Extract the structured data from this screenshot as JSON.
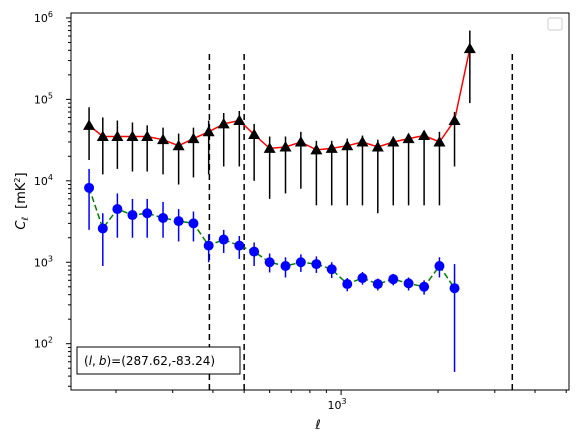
{
  "chart_data": {
    "type": "scatter",
    "xscale": "log",
    "yscale": "log",
    "xlim": [
      145,
      5100
    ],
    "ylim": [
      27,
      1150000
    ],
    "xlabel": "ℓ",
    "ylabel_main": "C",
    "ylabel_sub": "ℓ",
    "ylabel_unit": "[mK",
    "ylabel_unit_sup": "2",
    "ylabel_unit_close": "]",
    "x_tick_labels": [
      {
        "base": "10",
        "exp": "3",
        "value": 1000
      }
    ],
    "y_tick_labels": [
      {
        "base": "10",
        "exp": "2",
        "value": 100
      },
      {
        "base": "10",
        "exp": "3",
        "value": 1000
      },
      {
        "base": "10",
        "exp": "4",
        "value": 10000
      },
      {
        "base": "10",
        "exp": "5",
        "value": 100000
      },
      {
        "base": "10",
        "exp": "6",
        "value": 1000000
      }
    ],
    "vertical_lines": [
      {
        "x": 390,
        "ymax": 400000
      },
      {
        "x": 500,
        "ymax": 400000
      },
      {
        "x": 3400,
        "ymax": 400000
      }
    ],
    "series": [
      {
        "marker": "triangle",
        "marker_color": "#000000",
        "line_color": "#ff0000",
        "line_style": "solid",
        "x": [
          165,
          182,
          202,
          225,
          250,
          280,
          313,
          348,
          388,
          432,
          483,
          537,
          600,
          672,
          750,
          838,
          935,
          1045,
          1165,
          1300,
          1452,
          1620,
          1810,
          2020,
          2250,
          2510,
          2805,
          3125,
          3490,
          3900,
          4400
        ],
        "y": [
          48000,
          35000,
          35000,
          35000,
          35000,
          32000,
          27000,
          33000,
          40000,
          50000,
          55000,
          37000,
          25000,
          26000,
          30000,
          24000,
          25000,
          27000,
          30000,
          26000,
          30000,
          33000,
          36000,
          30000,
          55000,
          420000,
          null,
          null,
          null,
          null,
          null
        ],
        "err_low": [
          18000,
          12000,
          14000,
          13000,
          13000,
          12000,
          9000,
          11000,
          12000,
          15000,
          15000,
          10000,
          6000,
          7000,
          8000,
          5000,
          5000,
          5000,
          5000,
          4000,
          5000,
          5000,
          5000,
          5000,
          15000,
          90000,
          null,
          null,
          null,
          null,
          null
        ],
        "err_high": [
          80000,
          60000,
          55000,
          52000,
          48000,
          45000,
          38000,
          45000,
          55000,
          68000,
          72000,
          50000,
          35000,
          35000,
          40000,
          31000,
          31000,
          33000,
          36000,
          32000,
          35000,
          38000,
          41000,
          40000,
          70000,
          700000,
          null,
          null,
          null,
          null,
          null
        ]
      },
      {
        "marker": "circle",
        "marker_color": "#0000ff",
        "line_color": "#008000",
        "line_style": "dashed",
        "x": [
          165,
          182,
          202,
          225,
          250,
          280,
          313,
          348,
          388,
          432,
          483,
          537,
          600,
          672,
          750,
          838,
          935,
          1045,
          1165,
          1300,
          1452,
          1620,
          1810,
          2020,
          2250,
          2510,
          2805,
          3125,
          3490,
          3900,
          4400
        ],
        "y": [
          8200,
          2600,
          4500,
          3800,
          4000,
          3500,
          3200,
          3000,
          1600,
          1900,
          1600,
          1350,
          1000,
          900,
          1000,
          950,
          820,
          540,
          640,
          540,
          620,
          550,
          500,
          900,
          480,
          null,
          null,
          null,
          null,
          null,
          null
        ],
        "err_low": [
          2500,
          900,
          2000,
          2000,
          2000,
          2000,
          1800,
          1800,
          1000,
          1300,
          1100,
          900,
          750,
          650,
          760,
          740,
          640,
          440,
          530,
          450,
          520,
          450,
          400,
          650,
          45,
          null,
          null,
          null,
          null,
          null,
          null
        ],
        "err_high": [
          14000,
          4000,
          7000,
          6000,
          6000,
          5500,
          4500,
          4200,
          2200,
          2500,
          2100,
          1750,
          1280,
          1150,
          1250,
          1180,
          1000,
          640,
          760,
          630,
          720,
          650,
          600,
          1150,
          950,
          null,
          null,
          null,
          null,
          null,
          null
        ]
      }
    ],
    "annotation": {
      "text": "(l, b)=(287.62,-83.24)",
      "l_sym": "l",
      "b_sym": "b",
      "values": "=(287.62,-83.24)",
      "position": "bottom-left"
    },
    "legend": {
      "position": "top-right",
      "entries": []
    }
  }
}
